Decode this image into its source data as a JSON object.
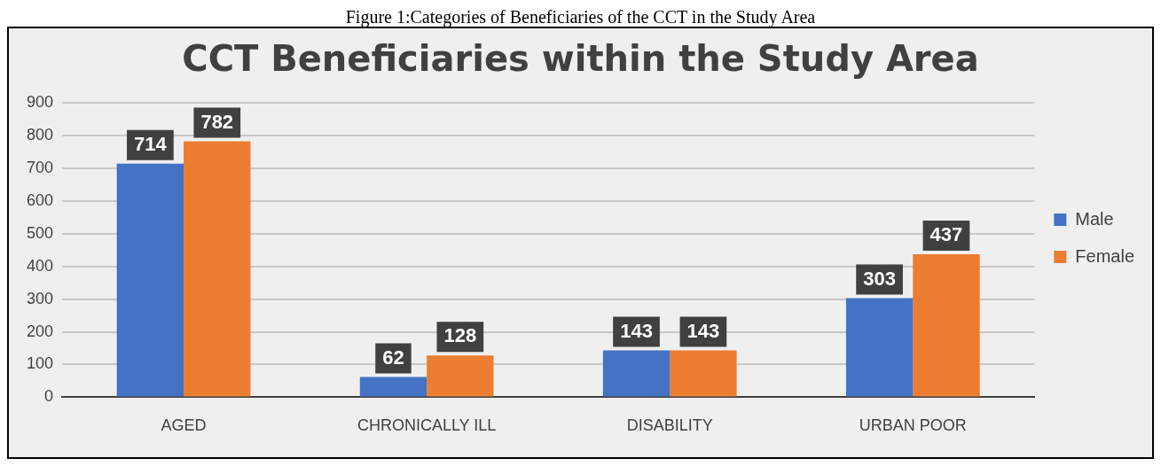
{
  "chart_data": {
    "type": "bar",
    "title": "CCT Beneficiaries within the Study Area",
    "annotations": [
      "Figure 1:Categories of Beneficiaries of the CCT in the Study Area"
    ],
    "categories": [
      "AGED",
      "CHRONICALLY ILL",
      "DISABILITY",
      "URBAN POOR"
    ],
    "series": [
      {
        "name": "Male",
        "color": "#4472c4",
        "values": [
          714,
          62,
          143,
          303
        ]
      },
      {
        "name": "Female",
        "color": "#ed7d31",
        "values": [
          782,
          128,
          143,
          437
        ]
      }
    ],
    "ylim": [
      0,
      900
    ],
    "yticks": [
      0,
      100,
      200,
      300,
      400,
      500,
      600,
      700,
      800,
      900
    ],
    "grid": "y",
    "legend": "right",
    "data_labels": true
  }
}
